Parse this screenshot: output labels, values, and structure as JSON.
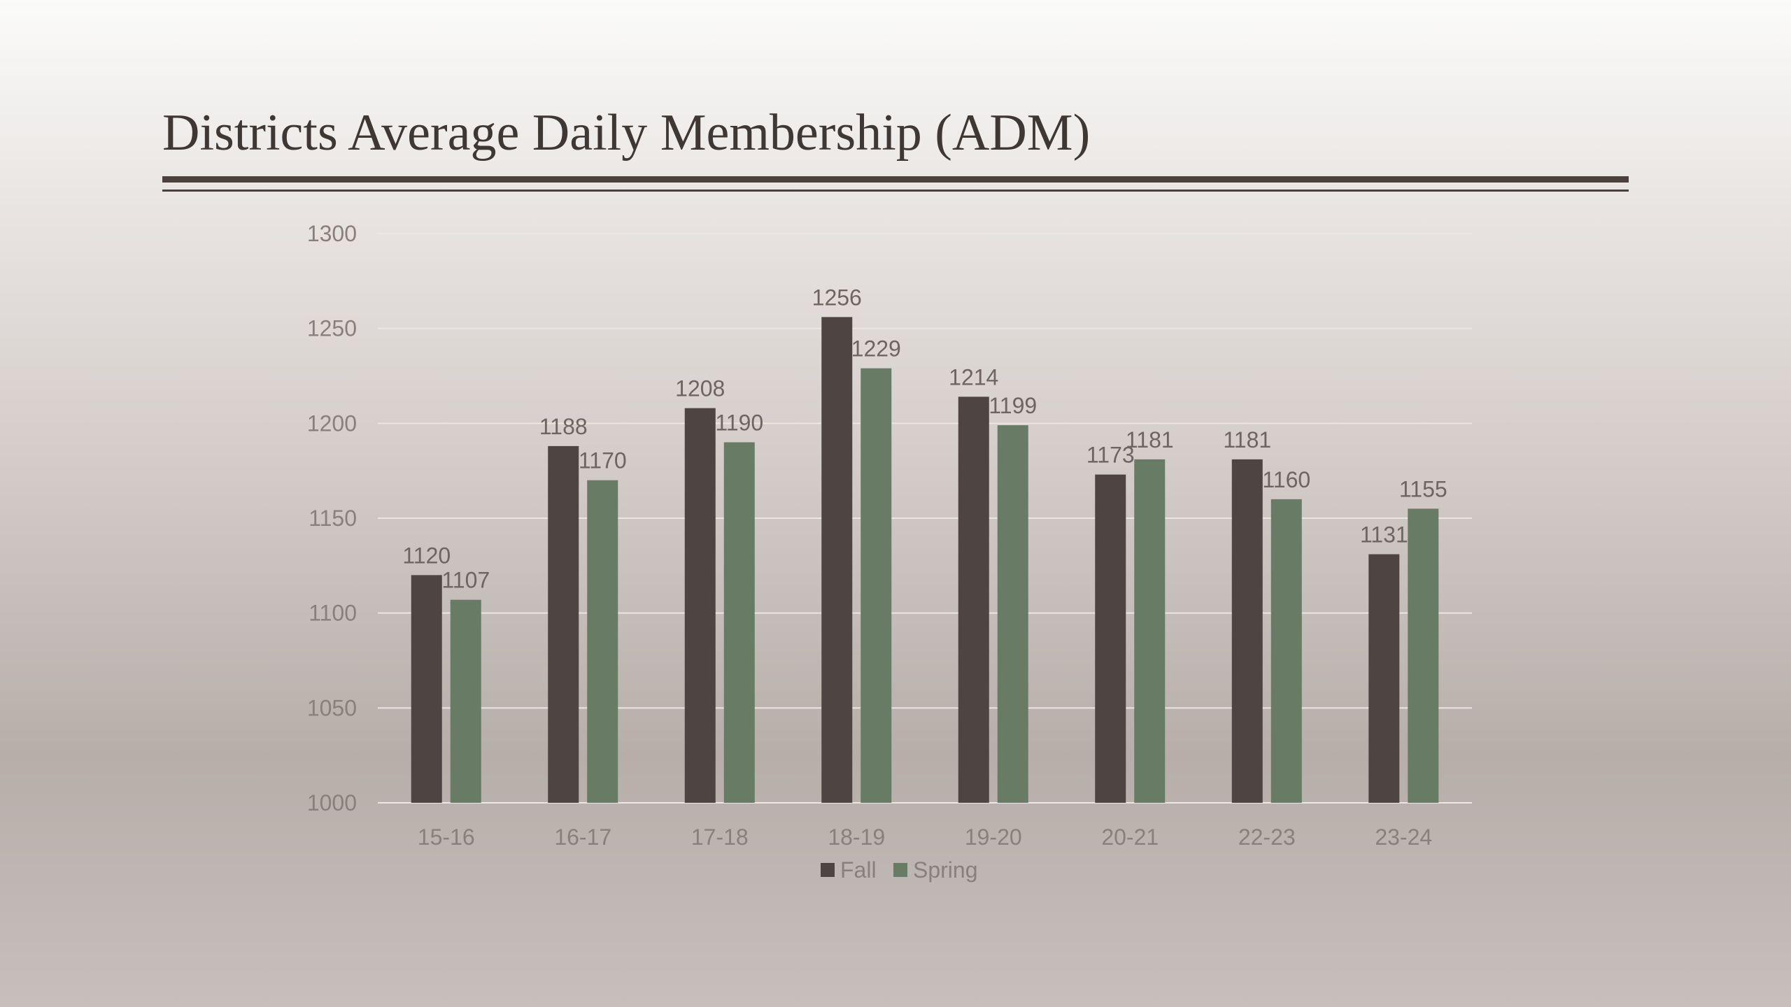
{
  "slide": {
    "title": "Districts Average Daily Membership (ADM)"
  },
  "colors": {
    "fall": "#4e4441",
    "spring": "#687b64",
    "title": "#3f3734",
    "gridline": "#ebe6e3"
  },
  "chart_data": {
    "type": "bar",
    "title": "",
    "xlabel": "",
    "ylabel": "",
    "categories": [
      "15-16",
      "16-17",
      "17-18",
      "18-19",
      "19-20",
      "20-21",
      "22-23",
      "23-24"
    ],
    "series": [
      {
        "name": "Fall",
        "color": "#4e4441",
        "values": [
          1120,
          1188,
          1208,
          1256,
          1214,
          1173,
          1181,
          1131
        ]
      },
      {
        "name": "Spring",
        "color": "#687b64",
        "values": [
          1107,
          1170,
          1190,
          1229,
          1199,
          1181,
          1160,
          1155
        ]
      }
    ],
    "ylim": [
      1000,
      1300
    ],
    "yticks": [
      "1000",
      "1050",
      "1100",
      "1150",
      "1200",
      "1250",
      "1300"
    ],
    "grid": true,
    "data_labels": true,
    "legend": {
      "position": "bottom",
      "entries": [
        "Fall",
        "Spring"
      ]
    }
  }
}
